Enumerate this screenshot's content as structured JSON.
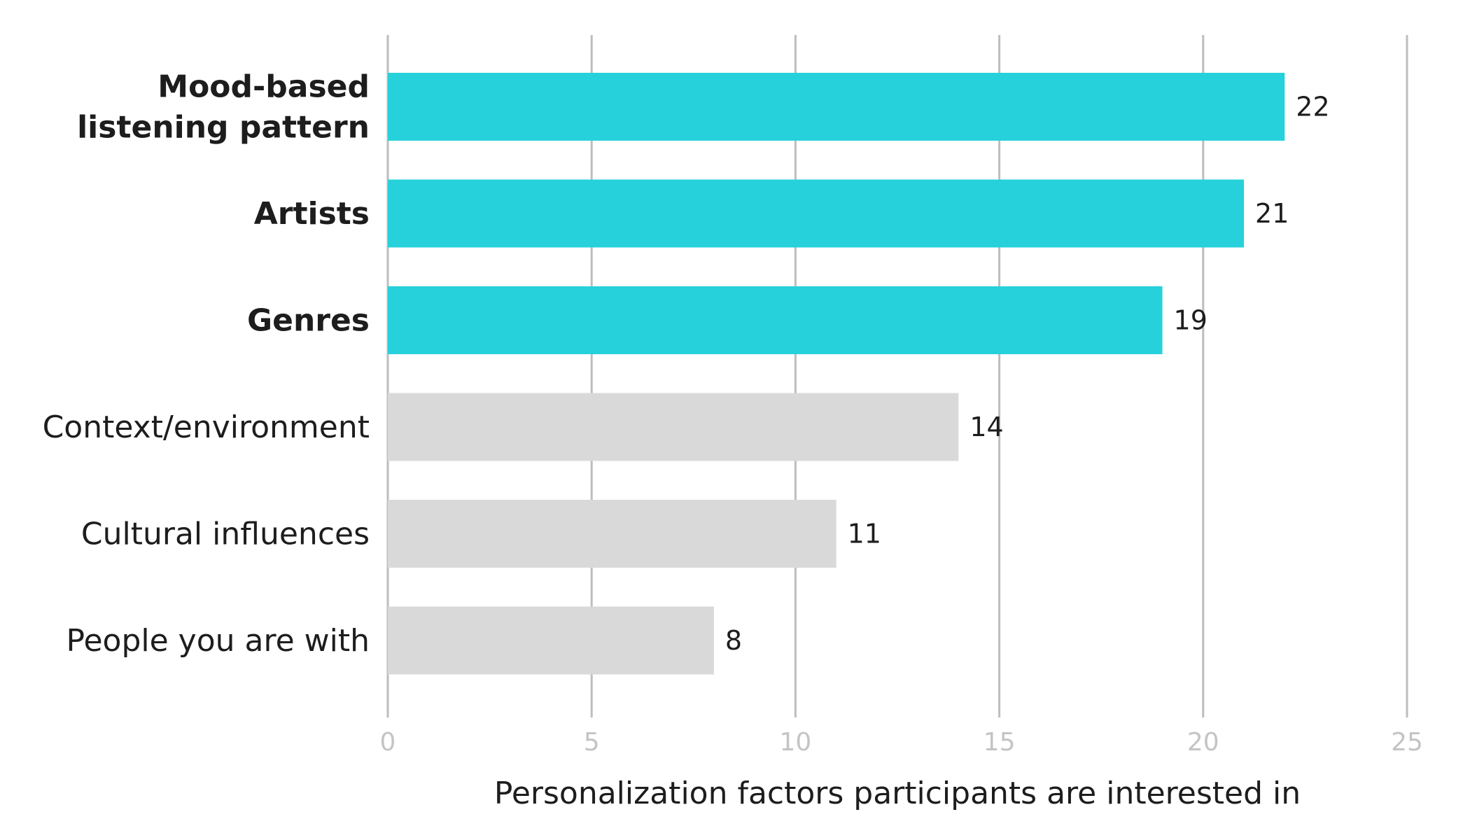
{
  "chart_data": {
    "type": "bar",
    "orientation": "horizontal",
    "categories": [
      "Mood-based listening pattern",
      "Artists",
      "Genres",
      "Context/environment",
      "Cultural influences",
      "People you are with"
    ],
    "category_label_lines": [
      [
        "Mood-based",
        "listening pattern"
      ],
      [
        "Artists"
      ],
      [
        "Genres"
      ],
      [
        "Context/environment"
      ],
      [
        "Cultural influences"
      ],
      [
        "People you are with"
      ]
    ],
    "values": [
      22,
      21,
      19,
      14,
      11,
      8
    ],
    "value_labels": [
      "22",
      "21",
      "19",
      "14",
      "11",
      "8"
    ],
    "highlighted": [
      true,
      true,
      true,
      false,
      false,
      false
    ],
    "xlabel": "Personalization factors participants are interested in",
    "ylabel": "",
    "xlim": [
      0,
      25
    ],
    "xticks": [
      0,
      5,
      10,
      15,
      20,
      25
    ],
    "xtick_labels": [
      "0",
      "5",
      "10",
      "15",
      "20",
      "25"
    ],
    "grid": "vertical",
    "colors": {
      "highlight": "#26d1db",
      "muted": "#d9d9d9",
      "gridline": "#bdbdbd",
      "tick_text": "#c4c4c4",
      "text": "#1d1d1d"
    }
  }
}
